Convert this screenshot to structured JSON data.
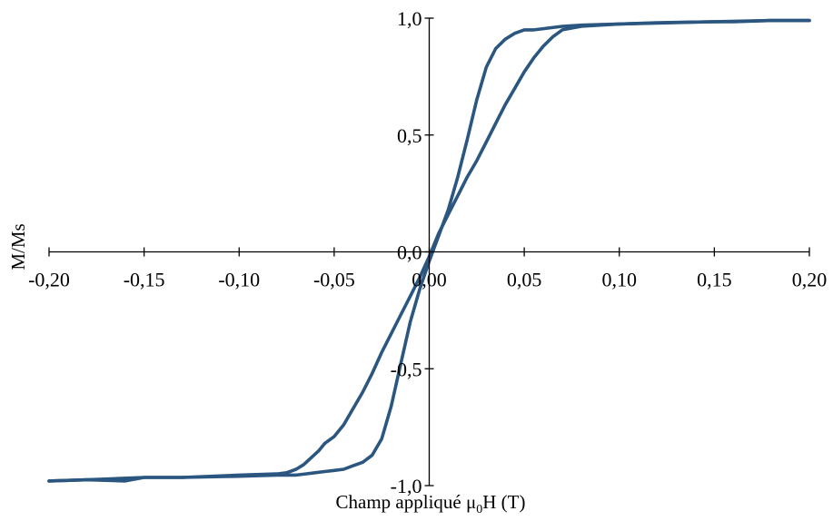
{
  "chart_data": {
    "type": "line",
    "title": "",
    "xlabel_parts": [
      "Champ appliqué μ",
      "0",
      "H (T)"
    ],
    "ylabel": "M/Ms",
    "xlim": [
      -0.2,
      0.2
    ],
    "ylim": [
      -1.0,
      1.0
    ],
    "x_ticks": [
      -0.2,
      -0.15,
      -0.1,
      -0.05,
      0.0,
      0.05,
      0.1,
      0.15,
      0.2
    ],
    "x_tick_labels": [
      "-0,20",
      "-0,15",
      "-0,10",
      "-0,05",
      "0,00",
      "0,05",
      "0,10",
      "0,15",
      "0,20"
    ],
    "y_ticks": [
      -1.0,
      -0.5,
      0.0,
      0.5,
      1.0
    ],
    "y_tick_labels": [
      "-1,0",
      "-0,5",
      "0,0",
      "0,5",
      "1,0"
    ],
    "grid": false,
    "legend": "none",
    "colors": {
      "curve": "#2b5680",
      "axis": "#000000"
    },
    "series": [
      {
        "x": [
          -0.2,
          -0.18,
          -0.16,
          -0.15,
          -0.13,
          -0.1,
          -0.08,
          -0.075,
          -0.07,
          -0.066,
          -0.062,
          -0.058,
          -0.055,
          -0.05,
          -0.045,
          -0.04,
          -0.035,
          -0.03,
          -0.025,
          -0.02,
          -0.015,
          -0.01,
          -0.005,
          0.0,
          0.005,
          0.01,
          0.015,
          0.02,
          0.025,
          0.03,
          0.035,
          0.04,
          0.045,
          0.05,
          0.055,
          0.06,
          0.065,
          0.07,
          0.08,
          0.1,
          0.15,
          0.18,
          0.2
        ],
        "y": [
          -0.98,
          -0.975,
          -0.98,
          -0.965,
          -0.965,
          -0.955,
          -0.95,
          -0.945,
          -0.93,
          -0.91,
          -0.88,
          -0.85,
          -0.82,
          -0.79,
          -0.74,
          -0.67,
          -0.6,
          -0.52,
          -0.43,
          -0.35,
          -0.27,
          -0.19,
          -0.11,
          -0.02,
          0.08,
          0.16,
          0.24,
          0.32,
          0.39,
          0.47,
          0.55,
          0.63,
          0.7,
          0.77,
          0.83,
          0.88,
          0.92,
          0.95,
          0.965,
          0.975,
          0.985,
          0.99,
          0.99
        ]
      },
      {
        "x": [
          0.2,
          0.18,
          0.16,
          0.15,
          0.12,
          0.1,
          0.08,
          0.07,
          0.06,
          0.055,
          0.05,
          0.045,
          0.04,
          0.035,
          0.03,
          0.025,
          0.02,
          0.015,
          0.01,
          0.005,
          0.0,
          -0.005,
          -0.01,
          -0.015,
          -0.02,
          -0.025,
          -0.03,
          -0.035,
          -0.04,
          -0.045,
          -0.05,
          -0.055,
          -0.06,
          -0.065,
          -0.07,
          -0.08,
          -0.1,
          -0.13,
          -0.15,
          -0.18,
          -0.2
        ],
        "y": [
          0.99,
          0.99,
          0.985,
          0.985,
          0.98,
          0.975,
          0.97,
          0.965,
          0.955,
          0.95,
          0.95,
          0.935,
          0.91,
          0.87,
          0.79,
          0.65,
          0.48,
          0.32,
          0.18,
          0.07,
          -0.04,
          -0.16,
          -0.3,
          -0.48,
          -0.66,
          -0.8,
          -0.87,
          -0.9,
          -0.915,
          -0.93,
          -0.935,
          -0.94,
          -0.945,
          -0.95,
          -0.955,
          -0.955,
          -0.96,
          -0.965,
          -0.965,
          -0.975,
          -0.98
        ]
      }
    ]
  }
}
